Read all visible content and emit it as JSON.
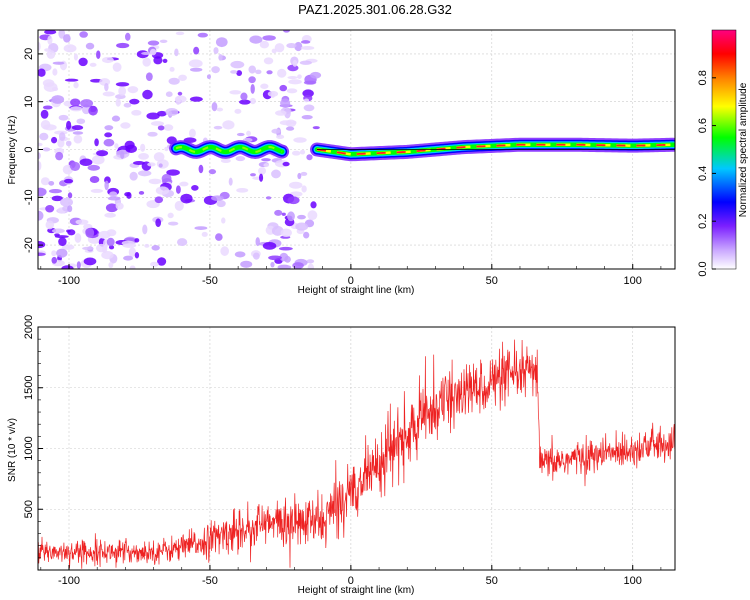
{
  "title": "PAZ1.2025.301.06.28.G32",
  "chart_data": [
    {
      "type": "heatmap",
      "xlabel": "Height of straight line (km)",
      "ylabel": "Frequency (Hz)",
      "xlim": [
        -111,
        115
      ],
      "ylim": [
        -25,
        25
      ],
      "xticks": [
        -100,
        -50,
        0,
        50,
        100
      ],
      "yticks": [
        -20,
        -10,
        0,
        10,
        20
      ],
      "colorbar": {
        "label": "Normalized spectral amplitude",
        "range": [
          0.0,
          1.0
        ],
        "ticks": [
          "0.0",
          "0.2",
          "0.4",
          "0.6",
          "0.8"
        ],
        "colors": [
          "#ffffff",
          "#7b1fff",
          "#0000ff",
          "#00c8ff",
          "#00ff00",
          "#ffff00",
          "#ff8000",
          "#ff0000",
          "#ff0080"
        ]
      },
      "noise_region_km": [
        -111,
        -12
      ],
      "signal_band": {
        "segments": [
          {
            "x_start": -62,
            "x_end": -24,
            "freq_hz": 0
          },
          {
            "x_start": -12,
            "x_end": 115,
            "freq_hz": 0
          }
        ],
        "trend": {
          "x": [
            -12,
            0,
            20,
            40,
            60,
            80,
            100,
            115
          ],
          "freq_hz": [
            0,
            -1,
            -0.5,
            0.5,
            1,
            1,
            0.8,
            1
          ]
        }
      }
    },
    {
      "type": "line",
      "xlabel": "Height of straight line (km)",
      "ylabel": "SNR (10 * v/v)",
      "xlim": [
        -111,
        115
      ],
      "ylim": [
        0,
        2000
      ],
      "xticks": [
        -100,
        -50,
        0,
        50,
        100
      ],
      "yticks": [
        500,
        1000,
        1500,
        2000
      ],
      "series": [
        {
          "name": "SNR",
          "color": "#ee2222",
          "trend_x": [
            -111,
            -90,
            -70,
            -60,
            -50,
            -40,
            -30,
            -20,
            -10,
            0,
            10,
            20,
            30,
            40,
            50,
            60,
            66,
            67,
            70,
            80,
            90,
            100,
            115
          ],
          "trend_y": [
            150,
            150,
            150,
            180,
            250,
            330,
            380,
            380,
            400,
            650,
            900,
            1100,
            1350,
            1450,
            1550,
            1600,
            1650,
            880,
            880,
            920,
            950,
            1000,
            1050
          ],
          "noise": [
            60,
            60,
            60,
            70,
            90,
            110,
            120,
            120,
            140,
            160,
            160,
            170,
            160,
            150,
            150,
            130,
            130,
            90,
            90,
            90,
            90,
            90,
            90
          ]
        }
      ]
    }
  ]
}
